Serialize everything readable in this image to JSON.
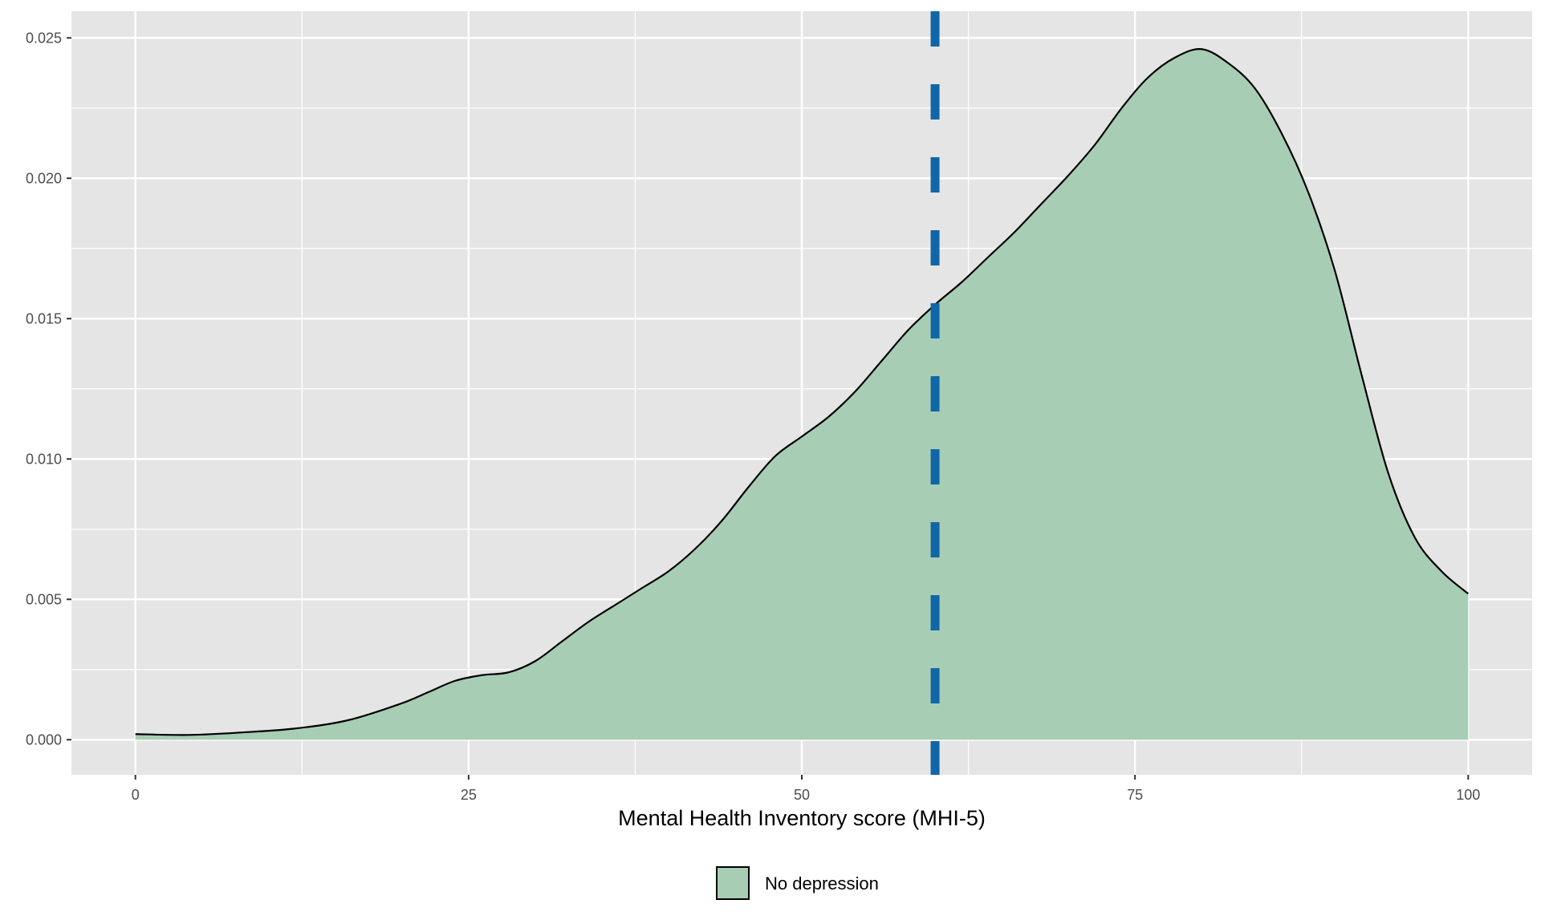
{
  "chart_data": {
    "type": "area",
    "title": "",
    "xlabel": "Mental Health Inventory score (MHI-5)",
    "ylabel": "",
    "xlim": [
      -4.8,
      104.8
    ],
    "ylim": [
      -0.00125,
      0.02595
    ],
    "x_ticks": [
      0,
      25,
      50,
      75,
      100
    ],
    "x_tick_labels": [
      "0",
      "25",
      "50",
      "75",
      "100"
    ],
    "y_ticks": [
      0,
      0.005,
      0.01,
      0.015,
      0.02,
      0.025
    ],
    "y_tick_labels": [
      "0.000",
      "0.005",
      "0.010",
      "0.015",
      "0.020",
      "0.025"
    ],
    "grid": true,
    "legend_position": "bottom",
    "series": [
      {
        "name": "No depression",
        "fill": "#a8cdb5",
        "line": "#000000",
        "x": [
          0,
          4,
          8,
          12,
          16,
          20,
          22,
          24,
          26,
          28,
          30,
          32,
          34,
          36,
          38,
          40,
          42,
          44,
          46,
          48,
          50,
          52,
          54,
          56,
          58,
          60,
          62,
          64,
          66,
          68,
          70,
          72,
          74,
          76,
          78,
          80,
          82,
          84,
          86,
          88,
          90,
          92,
          94,
          96,
          98,
          100
        ],
        "y": [
          0.0002,
          0.00017,
          0.00026,
          0.0004,
          0.0007,
          0.0013,
          0.0017,
          0.0021,
          0.0023,
          0.0024,
          0.0028,
          0.0035,
          0.0042,
          0.0048,
          0.0054,
          0.006,
          0.0068,
          0.0078,
          0.009,
          0.0101,
          0.0108,
          0.0115,
          0.0124,
          0.0135,
          0.0146,
          0.0155,
          0.0163,
          0.0172,
          0.0181,
          0.0191,
          0.0201,
          0.0212,
          0.0225,
          0.0236,
          0.0243,
          0.0246,
          0.0241,
          0.0232,
          0.0216,
          0.0195,
          0.0167,
          0.013,
          0.0095,
          0.0072,
          0.006,
          0.0052
        ]
      }
    ],
    "vline": {
      "x": 60,
      "color": "#1166a7",
      "style": "dashed"
    },
    "colors": {
      "panel": "#e5e5e5",
      "grid": "#ffffff"
    }
  }
}
